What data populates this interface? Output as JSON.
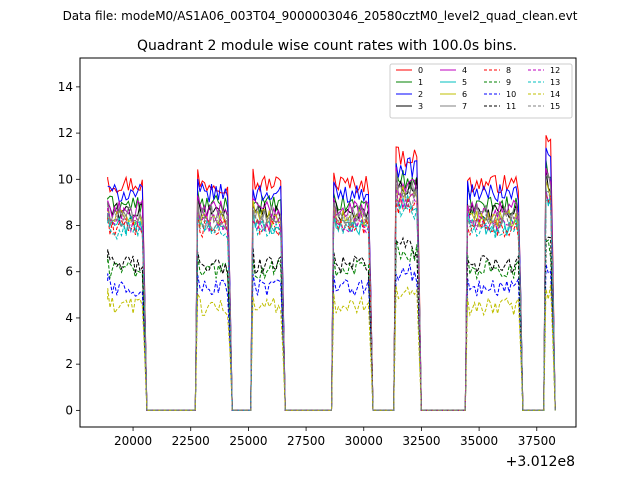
{
  "chart_data": {
    "type": "line",
    "suptitle": "Data file: modeM0/AS1A06_003T04_9000003046_20580cztM0_level2_quad_clean.evt",
    "title": "Quadrant 2 module wise count rates with 100.0s bins.",
    "xlabel": "",
    "ylabel": "",
    "x_offset_label": "+3.012e8",
    "xlim": [
      17700,
      39200
    ],
    "ylim": [
      -0.72,
      15.25
    ],
    "x_ticks": [
      20000,
      22500,
      25000,
      27500,
      30000,
      32500,
      35000,
      37500
    ],
    "x_tick_labels": [
      "20000",
      "22500",
      "25000",
      "27500",
      "30000",
      "32500",
      "35000",
      "37500"
    ],
    "y_ticks": [
      0,
      2,
      4,
      6,
      8,
      10,
      12,
      14
    ],
    "y_tick_labels": [
      "0",
      "2",
      "4",
      "6",
      "8",
      "10",
      "12",
      "14"
    ],
    "legend_position": "top-right",
    "bin_seconds": 100,
    "segments": [
      {
        "start": 18900,
        "end": 20500,
        "peak_start": 19000
      },
      {
        "start": 22800,
        "end": 24200,
        "peak_start": 22900
      },
      {
        "start": 25200,
        "end": 26500,
        "peak_start": 25300
      },
      {
        "start": 28700,
        "end": 30300,
        "peak_start": 28800
      },
      {
        "start": 31400,
        "end": 32400,
        "peak_start": 31500
      },
      {
        "start": 34500,
        "end": 36800,
        "peak_start": 34600
      },
      {
        "start": 37900,
        "end": 38200,
        "peak_start": 37950
      }
    ],
    "gap_value": 0,
    "series": [
      {
        "name": "0",
        "color": "#ff0000",
        "dash": "solid",
        "level": 9.8
      },
      {
        "name": "1",
        "color": "#008000",
        "dash": "solid",
        "level": 8.9
      },
      {
        "name": "2",
        "color": "#0000ff",
        "dash": "solid",
        "level": 9.4
      },
      {
        "name": "3",
        "color": "#000000",
        "dash": "solid",
        "level": 8.6
      },
      {
        "name": "4",
        "color": "#bf00bf",
        "dash": "solid",
        "level": 8.7
      },
      {
        "name": "5",
        "color": "#00bfbf",
        "dash": "solid",
        "level": 8.0
      },
      {
        "name": "6",
        "color": "#bfbf00",
        "dash": "solid",
        "level": 8.3
      },
      {
        "name": "7",
        "color": "#808080",
        "dash": "solid",
        "level": 8.5
      },
      {
        "name": "8",
        "color": "#ff0000",
        "dash": "dashed",
        "level": 7.9
      },
      {
        "name": "9",
        "color": "#008000",
        "dash": "dashed",
        "level": 6.1
      },
      {
        "name": "10",
        "color": "#0000ff",
        "dash": "dashed",
        "level": 5.3
      },
      {
        "name": "11",
        "color": "#000000",
        "dash": "dashed",
        "level": 6.3
      },
      {
        "name": "12",
        "color": "#bf00bf",
        "dash": "dashed",
        "level": 8.1
      },
      {
        "name": "13",
        "color": "#00bfbf",
        "dash": "dashed",
        "level": 7.8
      },
      {
        "name": "14",
        "color": "#bfbf00",
        "dash": "dashed",
        "level": 4.5
      },
      {
        "name": "15",
        "color": "#808080",
        "dash": "dashed",
        "level": 8.2
      }
    ]
  }
}
